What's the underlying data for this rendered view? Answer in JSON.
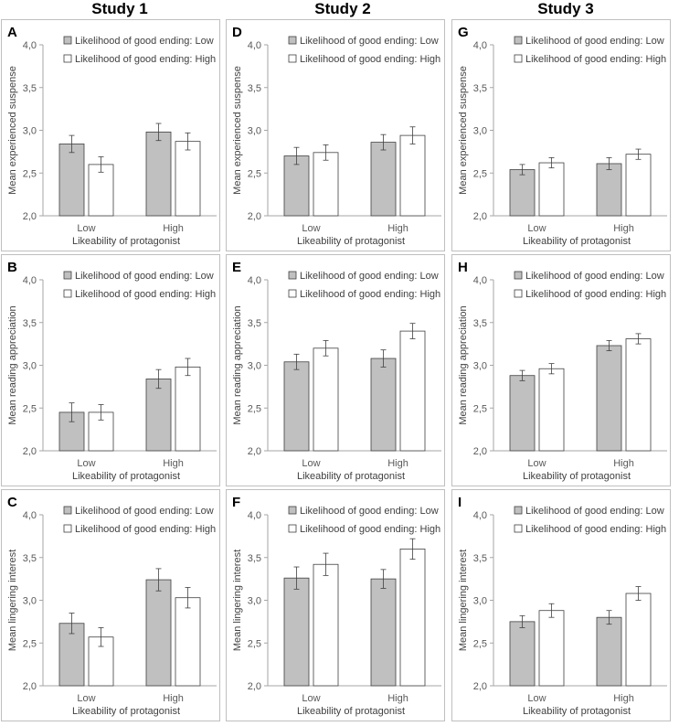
{
  "studies": [
    "Study 1",
    "Study 2",
    "Study 3"
  ],
  "colors": {
    "low_ending": "#c0c0c0",
    "high_ending": "#ffffff",
    "bar_stroke": "#404040",
    "axis": "#a6a6a6"
  },
  "chart_data": [
    {
      "panel": "A",
      "study": "Study 1",
      "type": "bar",
      "ylabel": "Mean experienced suspense",
      "xlabel": "Likeability of protagonist",
      "categories": [
        "Low",
        "High"
      ],
      "ylim": [
        2.0,
        4.0
      ],
      "yticks": [
        "2,0",
        "2,5",
        "3,0",
        "3,5",
        "4,0"
      ],
      "series": [
        {
          "name": "Likelihood of good ending: Low",
          "values": [
            2.84,
            2.98
          ],
          "errors": [
            0.1,
            0.1
          ]
        },
        {
          "name": "Likelihood of good ending: High",
          "values": [
            2.6,
            2.87
          ],
          "errors": [
            0.09,
            0.1
          ]
        }
      ]
    },
    {
      "panel": "B",
      "study": "Study 1",
      "type": "bar",
      "ylabel": "Mean reading appreciation",
      "xlabel": "Likeability of protagonist",
      "categories": [
        "Low",
        "High"
      ],
      "ylim": [
        2.0,
        4.0
      ],
      "yticks": [
        "2,0",
        "2,5",
        "3,0",
        "3,5",
        "4,0"
      ],
      "series": [
        {
          "name": "Likelihood of good ending: Low",
          "values": [
            2.45,
            2.84
          ],
          "errors": [
            0.11,
            0.11
          ]
        },
        {
          "name": "Likelihood of good ending: High",
          "values": [
            2.45,
            2.98
          ],
          "errors": [
            0.09,
            0.1
          ]
        }
      ]
    },
    {
      "panel": "C",
      "study": "Study 1",
      "type": "bar",
      "ylabel": "Mean lingering interest",
      "xlabel": "Likeability of protagonist",
      "categories": [
        "Low",
        "High"
      ],
      "ylim": [
        2.0,
        4.0
      ],
      "yticks": [
        "2,0",
        "2,5",
        "3,0",
        "3,5",
        "4,0"
      ],
      "series": [
        {
          "name": "Likelihood of good ending: Low",
          "values": [
            2.73,
            3.24
          ],
          "errors": [
            0.12,
            0.13
          ]
        },
        {
          "name": "Likelihood of good ending: High",
          "values": [
            2.57,
            3.03
          ],
          "errors": [
            0.11,
            0.12
          ]
        }
      ]
    },
    {
      "panel": "D",
      "study": "Study 2",
      "type": "bar",
      "ylabel": "Mean experienced suspense",
      "xlabel": "Likeability of protagonist",
      "categories": [
        "Low",
        "High"
      ],
      "ylim": [
        2.0,
        4.0
      ],
      "yticks": [
        "2,0",
        "2,5",
        "3,0",
        "3,5",
        "4,0"
      ],
      "series": [
        {
          "name": "Likelihood of good ending: Low",
          "values": [
            2.7,
            2.86
          ],
          "errors": [
            0.1,
            0.09
          ]
        },
        {
          "name": "Likelihood of good ending: High",
          "values": [
            2.74,
            2.94
          ],
          "errors": [
            0.09,
            0.1
          ]
        }
      ]
    },
    {
      "panel": "E",
      "study": "Study 2",
      "type": "bar",
      "ylabel": "Mean reading appreciation",
      "xlabel": "Likeability of protagonist",
      "categories": [
        "Low",
        "High"
      ],
      "ylim": [
        2.0,
        4.0
      ],
      "yticks": [
        "2,0",
        "2,5",
        "3,0",
        "3,5",
        "4,0"
      ],
      "series": [
        {
          "name": "Likelihood of good ending: Low",
          "values": [
            3.04,
            3.08
          ],
          "errors": [
            0.09,
            0.1
          ]
        },
        {
          "name": "Likelihood of good ending: High",
          "values": [
            3.2,
            3.4
          ],
          "errors": [
            0.09,
            0.09
          ]
        }
      ]
    },
    {
      "panel": "F",
      "study": "Study 2",
      "type": "bar",
      "ylabel": "Mean lingering interest",
      "xlabel": "Likeability of protagonist",
      "categories": [
        "Low",
        "High"
      ],
      "ylim": [
        2.0,
        4.0
      ],
      "yticks": [
        "2,0",
        "2,5",
        "3,0",
        "3,5",
        "4,0"
      ],
      "series": [
        {
          "name": "Likelihood of good ending: Low",
          "values": [
            3.26,
            3.25
          ],
          "errors": [
            0.13,
            0.11
          ]
        },
        {
          "name": "Likelihood of good ending: High",
          "values": [
            3.42,
            3.6
          ],
          "errors": [
            0.13,
            0.12
          ]
        }
      ]
    },
    {
      "panel": "G",
      "study": "Study 3",
      "type": "bar",
      "ylabel": "Mean experienced suspense",
      "xlabel": "Likeability of protagonist",
      "categories": [
        "Low",
        "High"
      ],
      "ylim": [
        2.0,
        4.0
      ],
      "yticks": [
        "2,0",
        "2,5",
        "3,0",
        "3,5",
        "4,0"
      ],
      "series": [
        {
          "name": "Likelihood of good ending: Low",
          "values": [
            2.54,
            2.61
          ],
          "errors": [
            0.06,
            0.07
          ]
        },
        {
          "name": "Likelihood of good ending: High",
          "values": [
            2.62,
            2.72
          ],
          "errors": [
            0.06,
            0.06
          ]
        }
      ]
    },
    {
      "panel": "H",
      "study": "Study 3",
      "type": "bar",
      "ylabel": "Mean reading appreciation",
      "xlabel": "Likeability of protagonist",
      "categories": [
        "Low",
        "High"
      ],
      "ylim": [
        2.0,
        4.0
      ],
      "yticks": [
        "2,0",
        "2,5",
        "3,0",
        "3,5",
        "4,0"
      ],
      "series": [
        {
          "name": "Likelihood of good ending: Low",
          "values": [
            2.88,
            3.23
          ],
          "errors": [
            0.06,
            0.06
          ]
        },
        {
          "name": "Likelihood of good ending: High",
          "values": [
            2.96,
            3.31
          ],
          "errors": [
            0.06,
            0.06
          ]
        }
      ]
    },
    {
      "panel": "I",
      "study": "Study 3",
      "type": "bar",
      "ylabel": "Mean lingering interest",
      "xlabel": "Likeability of protagonist",
      "categories": [
        "Low",
        "High"
      ],
      "ylim": [
        2.0,
        4.0
      ],
      "yticks": [
        "2,0",
        "2,5",
        "3,0",
        "3,5",
        "4,0"
      ],
      "series": [
        {
          "name": "Likelihood of good ending: Low",
          "values": [
            2.75,
            2.8
          ],
          "errors": [
            0.07,
            0.08
          ]
        },
        {
          "name": "Likelihood of good ending: High",
          "values": [
            2.88,
            3.08
          ],
          "errors": [
            0.08,
            0.08
          ]
        }
      ]
    }
  ]
}
